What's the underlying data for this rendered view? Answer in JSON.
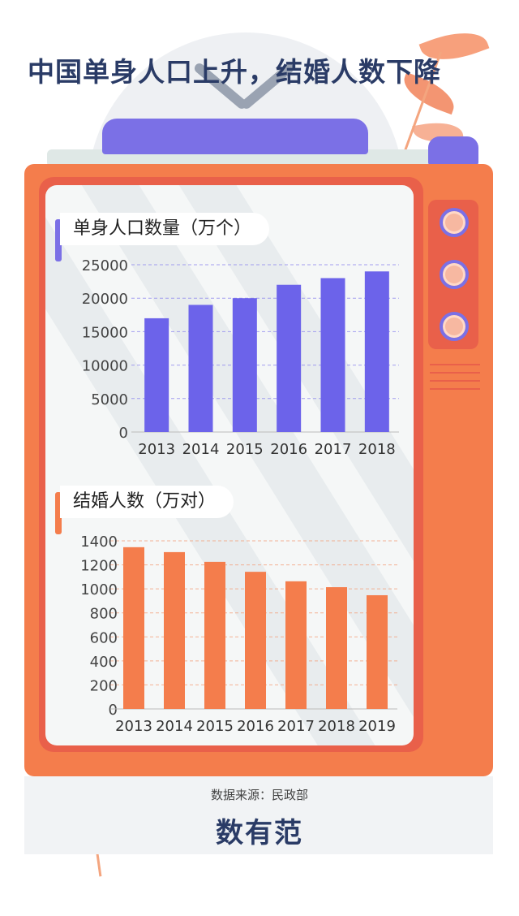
{
  "title": "中国单身人口上升，结婚人数下降",
  "source": "数据来源：民政部",
  "logo": "数有范",
  "colors": {
    "chart1_bar": "#6c63ea",
    "chart2_bar": "#f47d4c",
    "tv_body": "#f47d4c",
    "title": "#2a3b66"
  },
  "chart_data": [
    {
      "type": "bar",
      "title": "单身人口数量（万个）",
      "categories": [
        "2013",
        "2014",
        "2015",
        "2016",
        "2017",
        "2018"
      ],
      "values": [
        17000,
        19000,
        20000,
        22000,
        23000,
        24000
      ],
      "yticks": [
        0,
        5000,
        10000,
        15000,
        20000,
        25000
      ],
      "ylim": [
        0,
        25000
      ],
      "grid": true
    },
    {
      "type": "bar",
      "title": "结婚人数（万对）",
      "categories": [
        "2013",
        "2014",
        "2015",
        "2016",
        "2017",
        "2018",
        "2019"
      ],
      "values": [
        1347,
        1306,
        1225,
        1142,
        1063,
        1014,
        947
      ],
      "yticks": [
        0,
        200,
        400,
        600,
        800,
        1000,
        1200,
        1400
      ],
      "ylim": [
        0,
        1400
      ],
      "grid": true
    }
  ]
}
